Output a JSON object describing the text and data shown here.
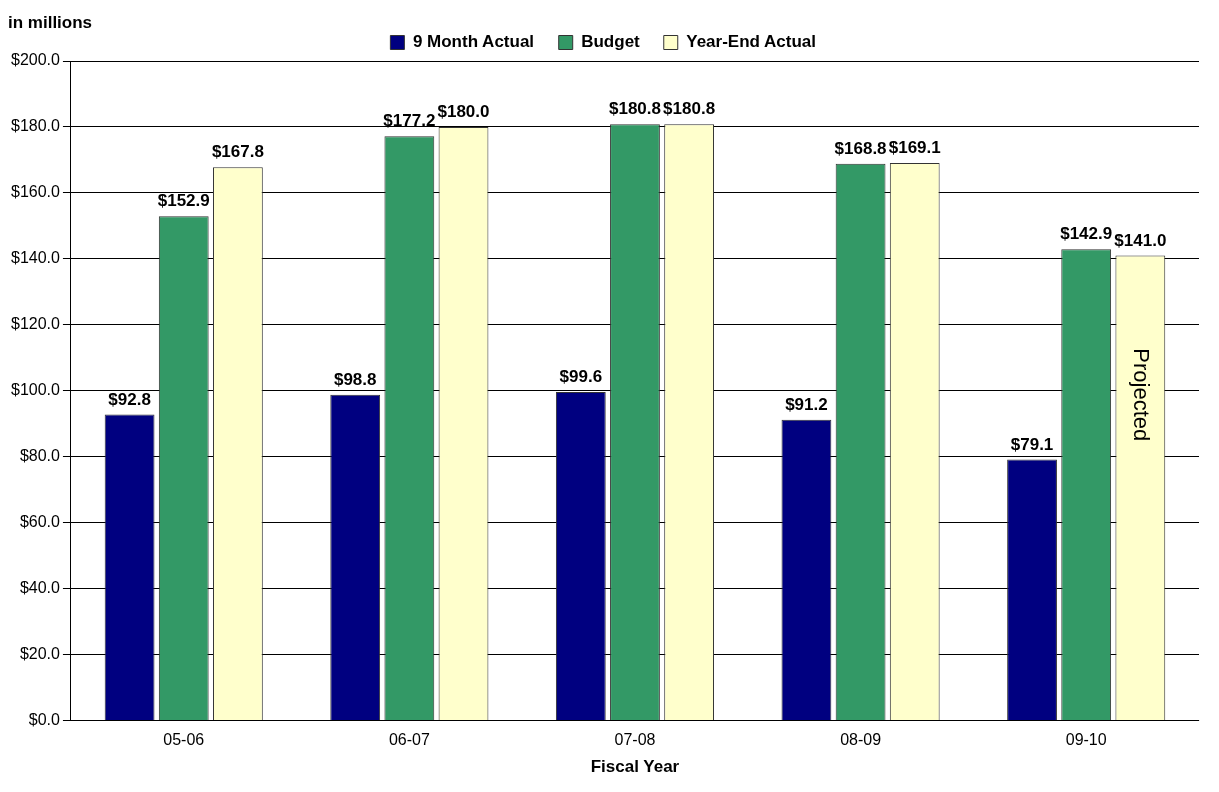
{
  "chart_data": {
    "type": "bar",
    "xlabel": "Fiscal Year",
    "ylabel": "in millions",
    "categories": [
      "05-06",
      "06-07",
      "07-08",
      "08-09",
      "09-10"
    ],
    "series": [
      {
        "name": "9 Month Actual",
        "color": "#000080",
        "values": [
          92.8,
          98.8,
          99.6,
          91.2,
          79.1
        ],
        "value_labels": [
          "$92.8",
          "$98.8",
          "$99.6",
          "$91.2",
          "$79.1"
        ]
      },
      {
        "name": "Budget",
        "color": "#339966",
        "values": [
          152.9,
          177.2,
          180.8,
          168.8,
          142.9
        ],
        "value_labels": [
          "$152.9",
          "$177.2",
          "$180.8",
          "$168.8",
          "$142.9"
        ]
      },
      {
        "name": "Year-End Actual",
        "color": "#ffffcc",
        "values": [
          167.8,
          180.0,
          180.8,
          169.1,
          141.0
        ],
        "value_labels": [
          "$167.8",
          "$180.0",
          "$180.8",
          "$169.1",
          "$141.0"
        ]
      }
    ],
    "ylim": [
      0,
      200
    ],
    "yticks": [
      {
        "value": 0,
        "label": "$0.0"
      },
      {
        "value": 20,
        "label": "$20.0"
      },
      {
        "value": 40,
        "label": "$40.0"
      },
      {
        "value": 60,
        "label": "$60.0"
      },
      {
        "value": 80,
        "label": "$80.0"
      },
      {
        "value": 100,
        "label": "$100.0"
      },
      {
        "value": 120,
        "label": "$120.0"
      },
      {
        "value": 140,
        "label": "$140.0"
      },
      {
        "value": 160,
        "label": "$160.0"
      },
      {
        "value": 180,
        "label": "$180.0"
      },
      {
        "value": 200,
        "label": "$200.0"
      }
    ],
    "annotations": [
      "Projected"
    ],
    "grid": "y",
    "legend": "top"
  }
}
